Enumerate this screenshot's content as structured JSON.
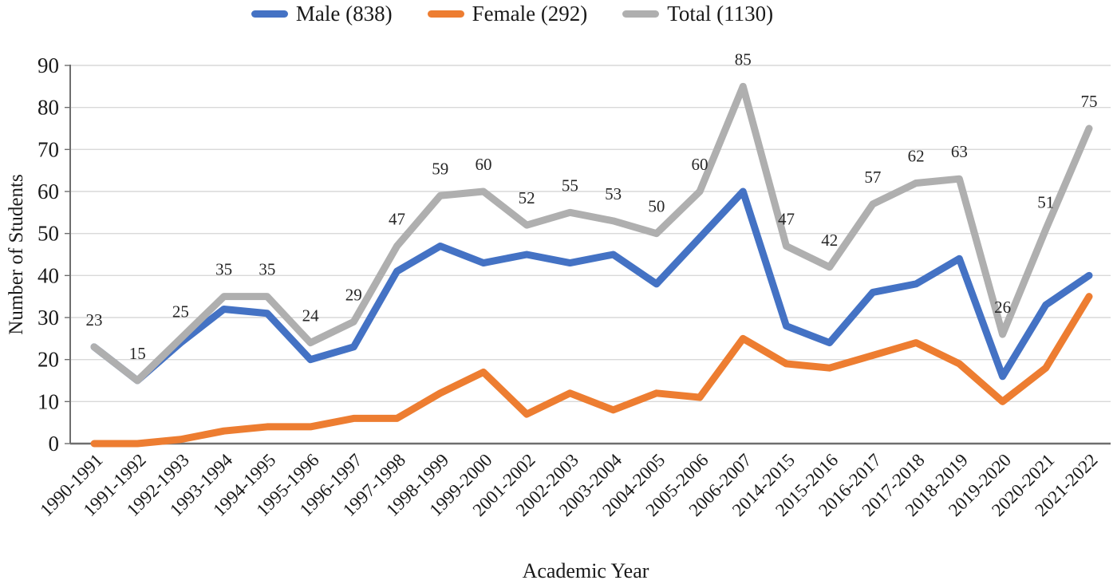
{
  "legend": {
    "items": [
      {
        "id": "male",
        "label": "Male (838)",
        "color": "#4472C4"
      },
      {
        "id": "female",
        "label": "Female (292)",
        "color": "#ED7D31"
      },
      {
        "id": "total",
        "label": "Total (1130)",
        "color": "#AFAFAF"
      }
    ]
  },
  "chart_data": {
    "type": "line",
    "title": "",
    "xlabel": "Academic Year",
    "ylabel": "Number of Students",
    "ylim": [
      0,
      90
    ],
    "ytick_step": 10,
    "grid": true,
    "legend_position": "top-center",
    "categories": [
      "1990-1991",
      "1991-1992",
      "1992-1993",
      "1993-1994",
      "1994-1995",
      "1995-1996",
      "1996-1997",
      "1997-1998",
      "1998-1999",
      "1999-2000",
      "2001-2002",
      "2002-2003",
      "2003-2004",
      "2004-2005",
      "2005-2006",
      "2006-2007",
      "2014-2015",
      "2015-2016",
      "2016-2017",
      "2017-2018",
      "2018-2019",
      "2019-2020",
      "2020-2021",
      "2021-2022"
    ],
    "series": [
      {
        "name": "Male",
        "color": "#4472C4",
        "data_labels": false,
        "values": [
          23,
          15,
          24,
          32,
          31,
          20,
          23,
          41,
          47,
          43,
          45,
          43,
          45,
          38,
          49,
          60,
          28,
          24,
          36,
          38,
          44,
          16,
          33,
          40
        ]
      },
      {
        "name": "Female",
        "color": "#ED7D31",
        "data_labels": false,
        "values": [
          0,
          0,
          1,
          3,
          4,
          4,
          6,
          6,
          12,
          17,
          7,
          12,
          8,
          12,
          11,
          25,
          19,
          18,
          21,
          24,
          19,
          10,
          18,
          35
        ]
      },
      {
        "name": "Total",
        "color": "#AFAFAF",
        "data_labels": true,
        "values": [
          23,
          15,
          25,
          35,
          35,
          24,
          29,
          47,
          59,
          60,
          52,
          55,
          53,
          50,
          60,
          85,
          47,
          42,
          57,
          62,
          63,
          26,
          51,
          75
        ]
      }
    ],
    "styles": {
      "grid_color": "#D9D9D9",
      "axis_color": "#6E6E6E",
      "tick_label_color": "#1a1a1a",
      "data_label_color": "#262626"
    }
  }
}
